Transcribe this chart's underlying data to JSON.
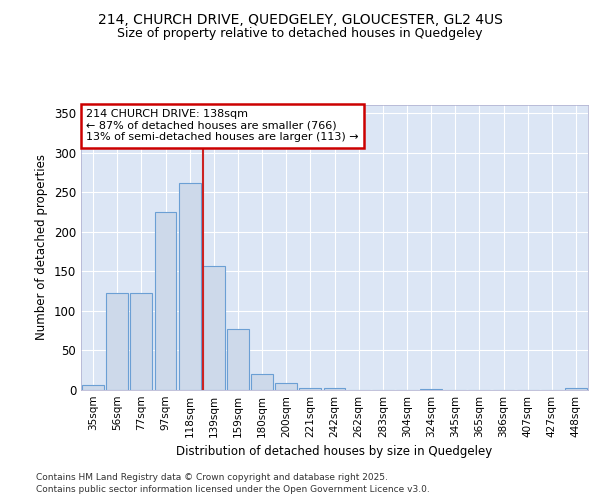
{
  "title1": "214, CHURCH DRIVE, QUEDGELEY, GLOUCESTER, GL2 4US",
  "title2": "Size of property relative to detached houses in Quedgeley",
  "xlabel": "Distribution of detached houses by size in Quedgeley",
  "ylabel": "Number of detached properties",
  "categories": [
    "35sqm",
    "56sqm",
    "77sqm",
    "97sqm",
    "118sqm",
    "139sqm",
    "159sqm",
    "180sqm",
    "200sqm",
    "221sqm",
    "242sqm",
    "262sqm",
    "283sqm",
    "304sqm",
    "324sqm",
    "345sqm",
    "365sqm",
    "386sqm",
    "407sqm",
    "427sqm",
    "448sqm"
  ],
  "values": [
    6,
    122,
    122,
    225,
    262,
    157,
    77,
    20,
    9,
    3,
    2,
    0,
    0,
    0,
    1,
    0,
    0,
    0,
    0,
    0,
    2
  ],
  "bar_color": "#cdd9ea",
  "bar_edge_color": "#6b9fd4",
  "vline_index": 5,
  "vline_color": "#cc2222",
  "annotation_title": "214 CHURCH DRIVE: 138sqm",
  "annotation_line1": "← 87% of detached houses are smaller (766)",
  "annotation_line2": "13% of semi-detached houses are larger (113) →",
  "annotation_box_color": "#ffffff",
  "annotation_box_edge": "#cc0000",
  "footer1": "Contains HM Land Registry data © Crown copyright and database right 2025.",
  "footer2": "Contains public sector information licensed under the Open Government Licence v3.0.",
  "plot_bg_color": "#dce6f5",
  "fig_bg_color": "#ffffff",
  "ylim": [
    0,
    360
  ],
  "yticks": [
    0,
    50,
    100,
    150,
    200,
    250,
    300,
    350
  ],
  "grid_color": "#ffffff"
}
